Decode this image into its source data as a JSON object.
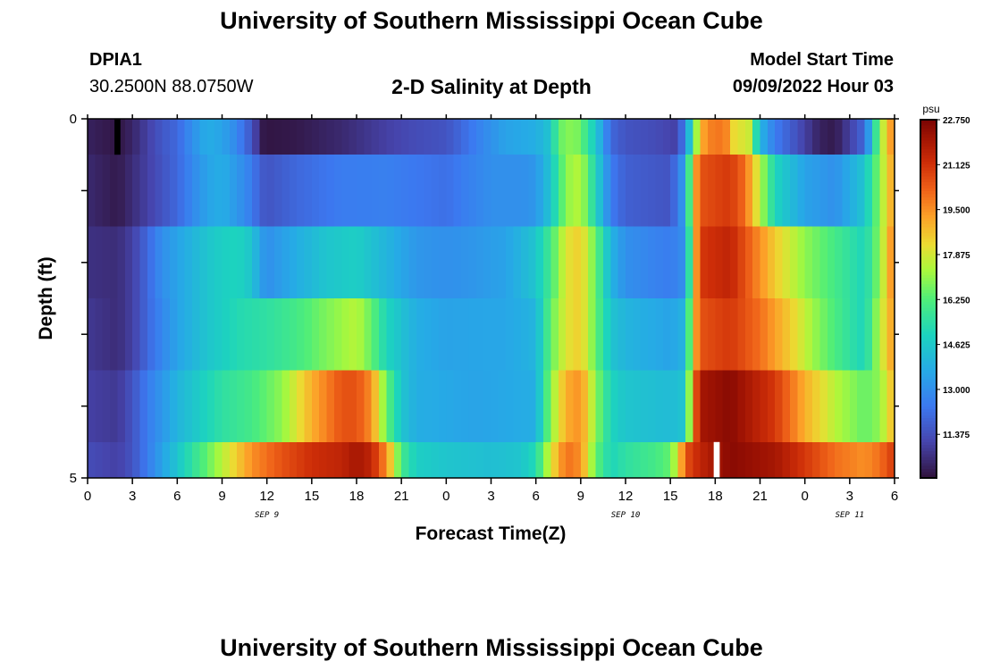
{
  "page": {
    "title": "University of Southern Mississippi Ocean Cube",
    "footer_title": "University of Southern Mississippi Ocean Cube",
    "station_id": "DPIA1",
    "coordinates": "30.2500N  88.0750W",
    "model_start_label": "Model Start Time",
    "model_start_value": "09/09/2022 Hour 03"
  },
  "chart_data": {
    "type": "heatmap",
    "title": "2-D Salinity at Depth",
    "xlabel": "Forecast Time(Z)",
    "ylabel": "Depth (ft)",
    "x_tick_labels": [
      "0",
      "3",
      "6",
      "9",
      "12",
      "15",
      "18",
      "21",
      "0",
      "3",
      "6",
      "9",
      "12",
      "15",
      "18",
      "21",
      "0",
      "3",
      "6"
    ],
    "x_range_hours": [
      0,
      54
    ],
    "date_labels": [
      {
        "label": "SEP 9",
        "hour": 12
      },
      {
        "label": "SEP 10",
        "hour": 36
      },
      {
        "label": "SEP 11",
        "hour": 51
      }
    ],
    "y_tick_labels": [
      "0",
      "5"
    ],
    "y_range": [
      0,
      5
    ],
    "colorbar": {
      "unit": "psu",
      "min": 9.8,
      "max": 22.75,
      "tick_labels": [
        "22.750",
        "21.125",
        "19.500",
        "17.875",
        "16.250",
        "14.625",
        "13.000",
        "11.375"
      ],
      "tick_values": [
        22.75,
        21.125,
        19.5,
        17.875,
        16.25,
        14.625,
        13.0,
        11.375
      ]
    },
    "depth_layers": [
      {
        "top": 0,
        "bottom": 0.5,
        "points": [
          [
            0,
            10.2
          ],
          [
            2,
            9.9
          ],
          [
            3,
            10.3
          ],
          [
            4,
            11.0
          ],
          [
            5,
            11.6
          ],
          [
            6,
            12.0
          ],
          [
            7,
            13.0
          ],
          [
            8,
            13.8
          ],
          [
            9,
            13.5
          ],
          [
            10,
            12.8
          ],
          [
            11,
            11.5
          ],
          [
            11.7,
            10.0
          ],
          [
            12,
            9.9
          ],
          [
            14,
            10.0
          ],
          [
            17,
            10.4
          ],
          [
            20,
            11.0
          ],
          [
            22,
            11.3
          ],
          [
            24,
            11.5
          ],
          [
            25,
            12.0
          ],
          [
            26,
            12.6
          ],
          [
            28,
            13.5
          ],
          [
            30,
            13.8
          ],
          [
            31,
            14.5
          ],
          [
            31.5,
            16.5
          ],
          [
            32.5,
            17.0
          ],
          [
            33,
            16.5
          ],
          [
            34,
            14.6
          ],
          [
            35,
            12.0
          ],
          [
            36,
            11.5
          ],
          [
            38,
            11.3
          ],
          [
            39.5,
            11.0
          ],
          [
            40,
            13.0
          ],
          [
            40.5,
            15.5
          ],
          [
            41,
            19.0
          ],
          [
            42,
            20.0
          ],
          [
            43,
            19.5
          ],
          [
            43.5,
            17.0
          ],
          [
            44,
            19.0
          ],
          [
            44.5,
            16.5
          ],
          [
            45,
            14.0
          ],
          [
            46,
            12.5
          ],
          [
            48,
            11.0
          ],
          [
            49,
            10.2
          ],
          [
            50,
            10.0
          ],
          [
            51,
            11.0
          ],
          [
            52,
            12.0
          ],
          [
            53,
            17.0
          ],
          [
            54,
            20.0
          ]
        ]
      },
      {
        "top": 0.5,
        "bottom": 1.5,
        "points": [
          [
            0,
            10.4
          ],
          [
            2,
            10.0
          ],
          [
            3,
            10.5
          ],
          [
            4,
            11.0
          ],
          [
            5,
            11.5
          ],
          [
            6,
            12.0
          ],
          [
            7,
            12.8
          ],
          [
            8,
            13.5
          ],
          [
            9,
            13.8
          ],
          [
            10,
            13.2
          ],
          [
            11,
            12.5
          ],
          [
            11.5,
            11.8
          ],
          [
            12,
            11.5
          ],
          [
            14,
            12.0
          ],
          [
            17,
            12.5
          ],
          [
            20,
            12.6
          ],
          [
            22,
            12.4
          ],
          [
            24,
            12.2
          ],
          [
            25,
            12.5
          ],
          [
            27,
            13.0
          ],
          [
            29,
            13.0
          ],
          [
            30,
            13.2
          ],
          [
            31,
            14.5
          ],
          [
            32,
            17.0
          ],
          [
            33,
            17.5
          ],
          [
            34,
            15.0
          ],
          [
            35,
            12.5
          ],
          [
            36,
            11.8
          ],
          [
            39,
            11.5
          ],
          [
            40,
            13.5
          ],
          [
            40.5,
            18.5
          ],
          [
            41,
            20.5
          ],
          [
            43,
            21.0
          ],
          [
            44,
            20.0
          ],
          [
            45,
            17.5
          ],
          [
            46,
            15.0
          ],
          [
            48,
            13.5
          ],
          [
            50,
            13.0
          ],
          [
            52,
            14.5
          ],
          [
            53,
            17.0
          ],
          [
            54,
            19.5
          ]
        ]
      },
      {
        "top": 1.5,
        "bottom": 2.5,
        "points": [
          [
            0,
            10.6
          ],
          [
            2,
            10.5
          ],
          [
            3,
            11.0
          ],
          [
            4,
            12.0
          ],
          [
            5,
            13.0
          ],
          [
            6,
            13.5
          ],
          [
            7,
            14.0
          ],
          [
            8,
            14.5
          ],
          [
            9,
            14.8
          ],
          [
            10,
            15.0
          ],
          [
            11,
            14.5
          ],
          [
            11.5,
            13.5
          ],
          [
            12,
            13.0
          ],
          [
            14,
            13.8
          ],
          [
            16,
            14.5
          ],
          [
            18,
            14.8
          ],
          [
            20,
            14.0
          ],
          [
            22,
            13.2
          ],
          [
            24,
            13.0
          ],
          [
            26,
            13.2
          ],
          [
            28,
            13.5
          ],
          [
            30,
            14.5
          ],
          [
            31,
            16.0
          ],
          [
            32,
            18.0
          ],
          [
            33,
            18.5
          ],
          [
            34,
            16.5
          ],
          [
            35,
            14.0
          ],
          [
            36,
            13.0
          ],
          [
            39,
            12.5
          ],
          [
            40,
            13.0
          ],
          [
            40.5,
            18.0
          ],
          [
            41,
            21.0
          ],
          [
            43,
            21.5
          ],
          [
            44,
            20.5
          ],
          [
            45,
            19.5
          ],
          [
            46,
            18.5
          ],
          [
            48,
            17.0
          ],
          [
            50,
            16.0
          ],
          [
            52,
            15.0
          ],
          [
            53,
            17.0
          ],
          [
            54,
            20.0
          ]
        ]
      },
      {
        "top": 2.5,
        "bottom": 3.5,
        "points": [
          [
            0,
            10.8
          ],
          [
            2,
            10.5
          ],
          [
            3,
            11.0
          ],
          [
            4,
            12.0
          ],
          [
            5,
            12.8
          ],
          [
            6,
            13.5
          ],
          [
            7,
            14.0
          ],
          [
            8,
            14.5
          ],
          [
            9,
            14.8
          ],
          [
            10,
            15.2
          ],
          [
            12,
            15.5
          ],
          [
            14,
            16.0
          ],
          [
            16,
            16.8
          ],
          [
            18,
            17.5
          ],
          [
            19,
            16.5
          ],
          [
            20,
            15.0
          ],
          [
            22,
            13.8
          ],
          [
            24,
            13.5
          ],
          [
            28,
            13.6
          ],
          [
            30,
            14.0
          ],
          [
            31,
            16.5
          ],
          [
            32,
            18.0
          ],
          [
            33,
            18.5
          ],
          [
            34,
            16.5
          ],
          [
            35,
            14.5
          ],
          [
            36,
            14.0
          ],
          [
            39,
            13.5
          ],
          [
            40,
            14.0
          ],
          [
            40.5,
            18.5
          ],
          [
            41,
            20.5
          ],
          [
            43,
            21.0
          ],
          [
            45,
            20.0
          ],
          [
            47,
            18.5
          ],
          [
            49,
            16.8
          ],
          [
            51,
            15.5
          ],
          [
            52,
            15.0
          ],
          [
            53,
            17.5
          ],
          [
            54,
            19.5
          ]
        ]
      },
      {
        "top": 3.5,
        "bottom": 4.5,
        "points": [
          [
            0,
            11.0
          ],
          [
            2,
            10.8
          ],
          [
            3,
            11.5
          ],
          [
            4,
            12.5
          ],
          [
            5,
            13.2
          ],
          [
            6,
            14.0
          ],
          [
            7,
            14.5
          ],
          [
            9,
            15.5
          ],
          [
            11,
            16.0
          ],
          [
            13,
            17.0
          ],
          [
            15,
            19.0
          ],
          [
            17,
            20.5
          ],
          [
            18,
            20.5
          ],
          [
            19,
            19.5
          ],
          [
            20,
            16.5
          ],
          [
            21,
            14.5
          ],
          [
            22,
            13.8
          ],
          [
            26,
            13.5
          ],
          [
            30,
            13.8
          ],
          [
            31,
            17.0
          ],
          [
            32,
            19.0
          ],
          [
            33,
            19.5
          ],
          [
            34,
            17.0
          ],
          [
            35,
            15.0
          ],
          [
            36,
            14.5
          ],
          [
            39,
            14.2
          ],
          [
            40,
            14.5
          ],
          [
            40.5,
            19.5
          ],
          [
            41,
            22.0
          ],
          [
            43,
            22.5
          ],
          [
            46,
            21.0
          ],
          [
            48,
            19.0
          ],
          [
            50,
            17.5
          ],
          [
            52,
            16.5
          ],
          [
            53,
            17.0
          ],
          [
            54,
            19.0
          ]
        ]
      },
      {
        "top": 4.5,
        "bottom": 5.0,
        "points": [
          [
            0,
            11.3
          ],
          [
            2,
            11.0
          ],
          [
            3,
            11.5
          ],
          [
            4,
            12.5
          ],
          [
            5,
            13.5
          ],
          [
            6,
            14.5
          ],
          [
            7,
            15.5
          ],
          [
            8,
            16.5
          ],
          [
            9,
            17.5
          ],
          [
            10,
            18.5
          ],
          [
            11,
            19.5
          ],
          [
            13,
            20.5
          ],
          [
            15,
            21.2
          ],
          [
            17,
            21.5
          ],
          [
            18,
            22.0
          ],
          [
            19,
            21.5
          ],
          [
            20,
            19.5
          ],
          [
            21,
            16.0
          ],
          [
            22,
            14.8
          ],
          [
            24,
            14.5
          ],
          [
            27,
            14.3
          ],
          [
            29,
            14.5
          ],
          [
            30,
            15.2
          ],
          [
            31,
            18.0
          ],
          [
            32,
            20.0
          ],
          [
            33,
            19.5
          ],
          [
            34,
            16.5
          ],
          [
            35,
            15.0
          ],
          [
            36,
            15.5
          ],
          [
            38,
            16.0
          ],
          [
            39,
            16.5
          ],
          [
            39.5,
            18.0
          ],
          [
            40,
            20.5
          ],
          [
            41,
            21.5
          ],
          [
            42,
            22.0
          ],
          [
            43,
            22.5
          ],
          [
            46,
            22.0
          ],
          [
            48,
            21.0
          ],
          [
            50,
            20.0
          ],
          [
            52,
            19.5
          ],
          [
            53,
            20.0
          ],
          [
            54,
            21.0
          ]
        ]
      }
    ],
    "missing_cells": [
      {
        "hour_start": 1.8,
        "hour_end": 2.2,
        "depth_top": 0,
        "depth_bottom": 0.5,
        "color": "#000000"
      },
      {
        "hour_start": 41.9,
        "hour_end": 42.3,
        "depth_top": 4.5,
        "depth_bottom": 5.0,
        "color": "#ffffff"
      }
    ]
  }
}
